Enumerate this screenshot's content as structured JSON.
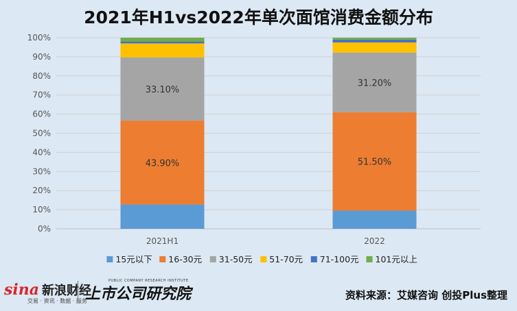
{
  "chart_data": {
    "type": "bar",
    "stacked": true,
    "title": "2021年H1vs2022年单次面馆消费金额分布",
    "categories": [
      "2021H1",
      "2022"
    ],
    "ylim": [
      0,
      100
    ],
    "yticks": [
      "0%",
      "10%",
      "20%",
      "30%",
      "40%",
      "50%",
      "60%",
      "70%",
      "80%",
      "90%",
      "100%"
    ],
    "legend_position": "bottom",
    "grid": true,
    "series": [
      {
        "name": "15元以下",
        "color": "#5b9bd5",
        "values": [
          12.7,
          9.5
        ],
        "labels": [
          "",
          ""
        ]
      },
      {
        "name": "16-30元",
        "color": "#ed7d31",
        "values": [
          43.9,
          51.5
        ],
        "labels": [
          "43.90%",
          "51.50%"
        ]
      },
      {
        "name": "31-50元",
        "color": "#a5a5a5",
        "values": [
          33.1,
          31.2
        ],
        "labels": [
          "33.10%",
          "31.20%"
        ]
      },
      {
        "name": "51-70元",
        "color": "#ffc000",
        "values": [
          7.3,
          5.3
        ],
        "labels": [
          "",
          ""
        ]
      },
      {
        "name": "71-100元",
        "color": "#4472c4",
        "values": [
          1.0,
          1.5
        ],
        "labels": [
          "",
          ""
        ]
      },
      {
        "name": "101元以上",
        "color": "#70ad47",
        "values": [
          2.0,
          1.0
        ],
        "labels": [
          "",
          ""
        ]
      }
    ]
  },
  "footer": {
    "source": "资料来源：艾媒咨询 创投Plus整理",
    "logo_sina": "sina",
    "logo_sina_cn": "新浪财经",
    "logo_sina_sub": "交易 · 资讯 · 数据 · 服务",
    "logo_research": "上市公司研究院",
    "logo_research_sub": "PUBLIC COMPANY RESEARCH INSTITUTE"
  }
}
